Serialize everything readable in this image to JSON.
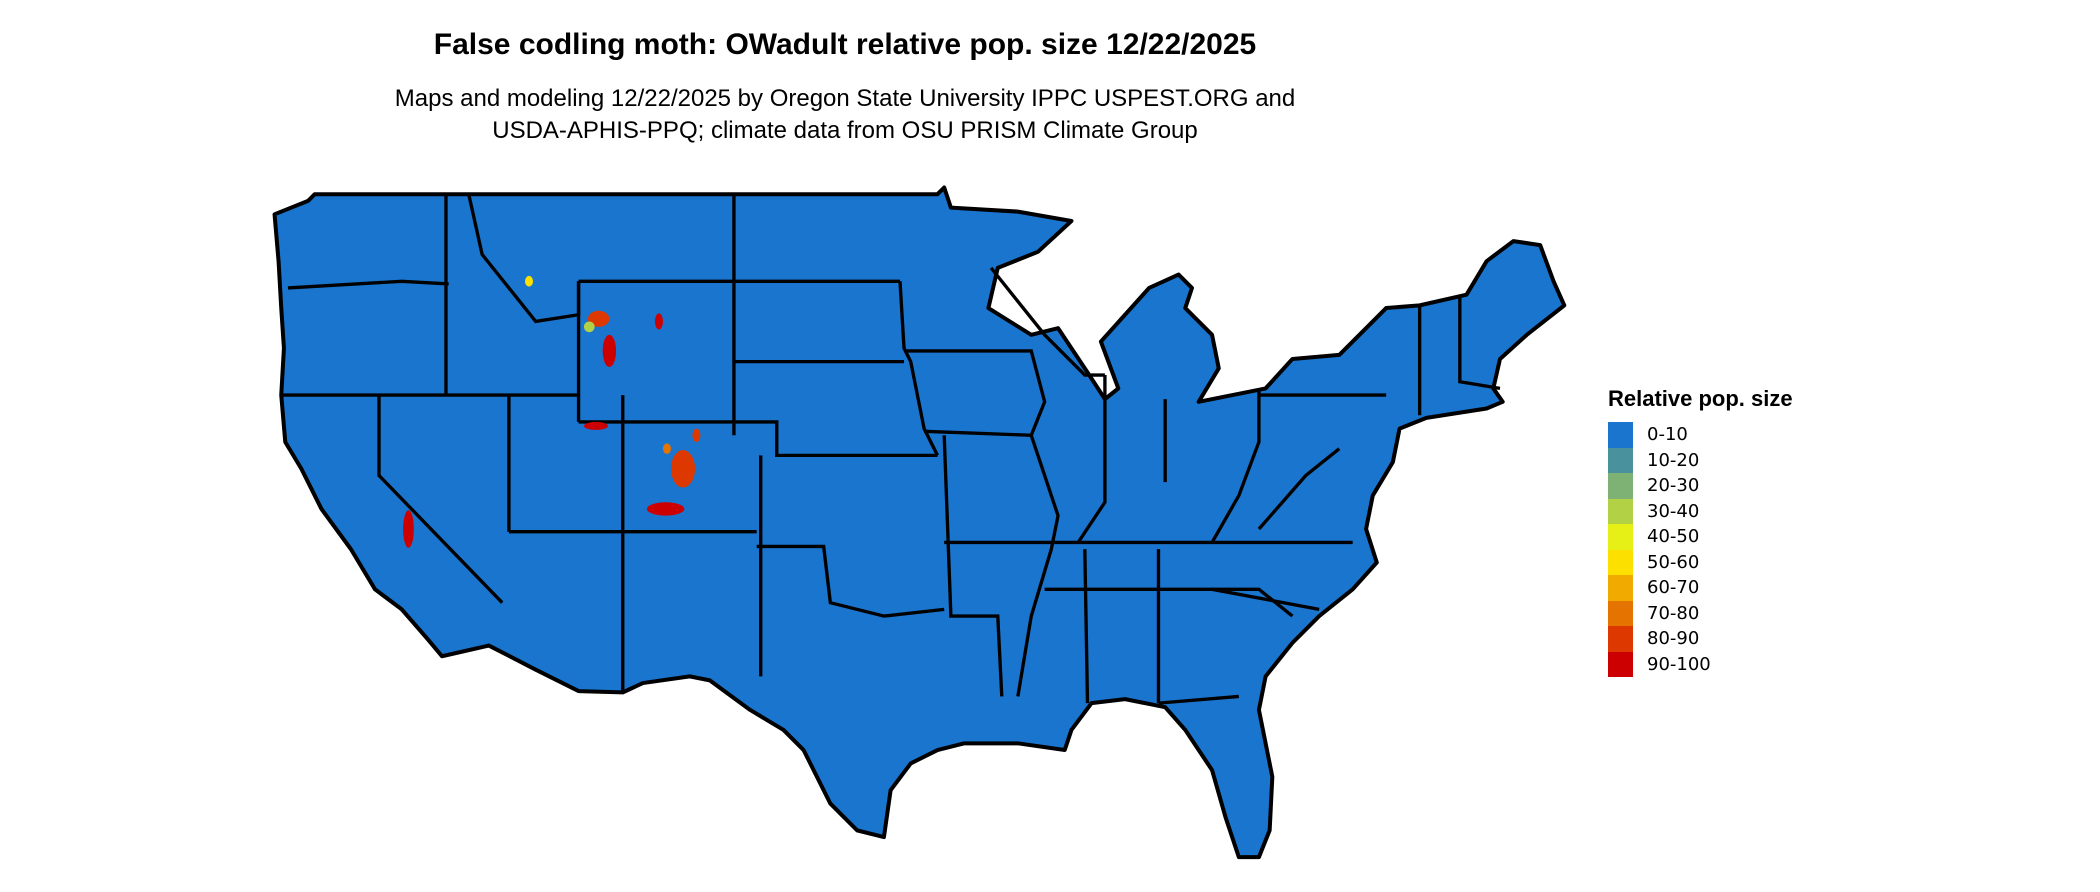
{
  "title": "False codling moth: OWadult relative pop. size 12/22/2025",
  "subtitle_lines": [
    "Maps and modeling 12/22/2025 by Oregon State University IPPC USPEST.ORG and",
    "USDA-APHIS-PPQ; climate data from OSU PRISM Climate Group"
  ],
  "map": {
    "region": "Contiguous United States",
    "base_fill_color": "#1a75cf",
    "border_color": "#000000"
  },
  "legend": {
    "title": "Relative pop. size",
    "items": [
      {
        "label": "0-10",
        "color": "#1a75cf"
      },
      {
        "label": "10-20",
        "color": "#4a919e"
      },
      {
        "label": "20-30",
        "color": "#7eb174"
      },
      {
        "label": "30-40",
        "color": "#b3d145"
      },
      {
        "label": "40-50",
        "color": "#e6f016"
      },
      {
        "label": "50-60",
        "color": "#fce100"
      },
      {
        "label": "60-70",
        "color": "#f0aa00"
      },
      {
        "label": "70-80",
        "color": "#e57300"
      },
      {
        "label": "80-90",
        "color": "#dc3800"
      },
      {
        "label": "90-100",
        "color": "#cc0000"
      }
    ]
  }
}
